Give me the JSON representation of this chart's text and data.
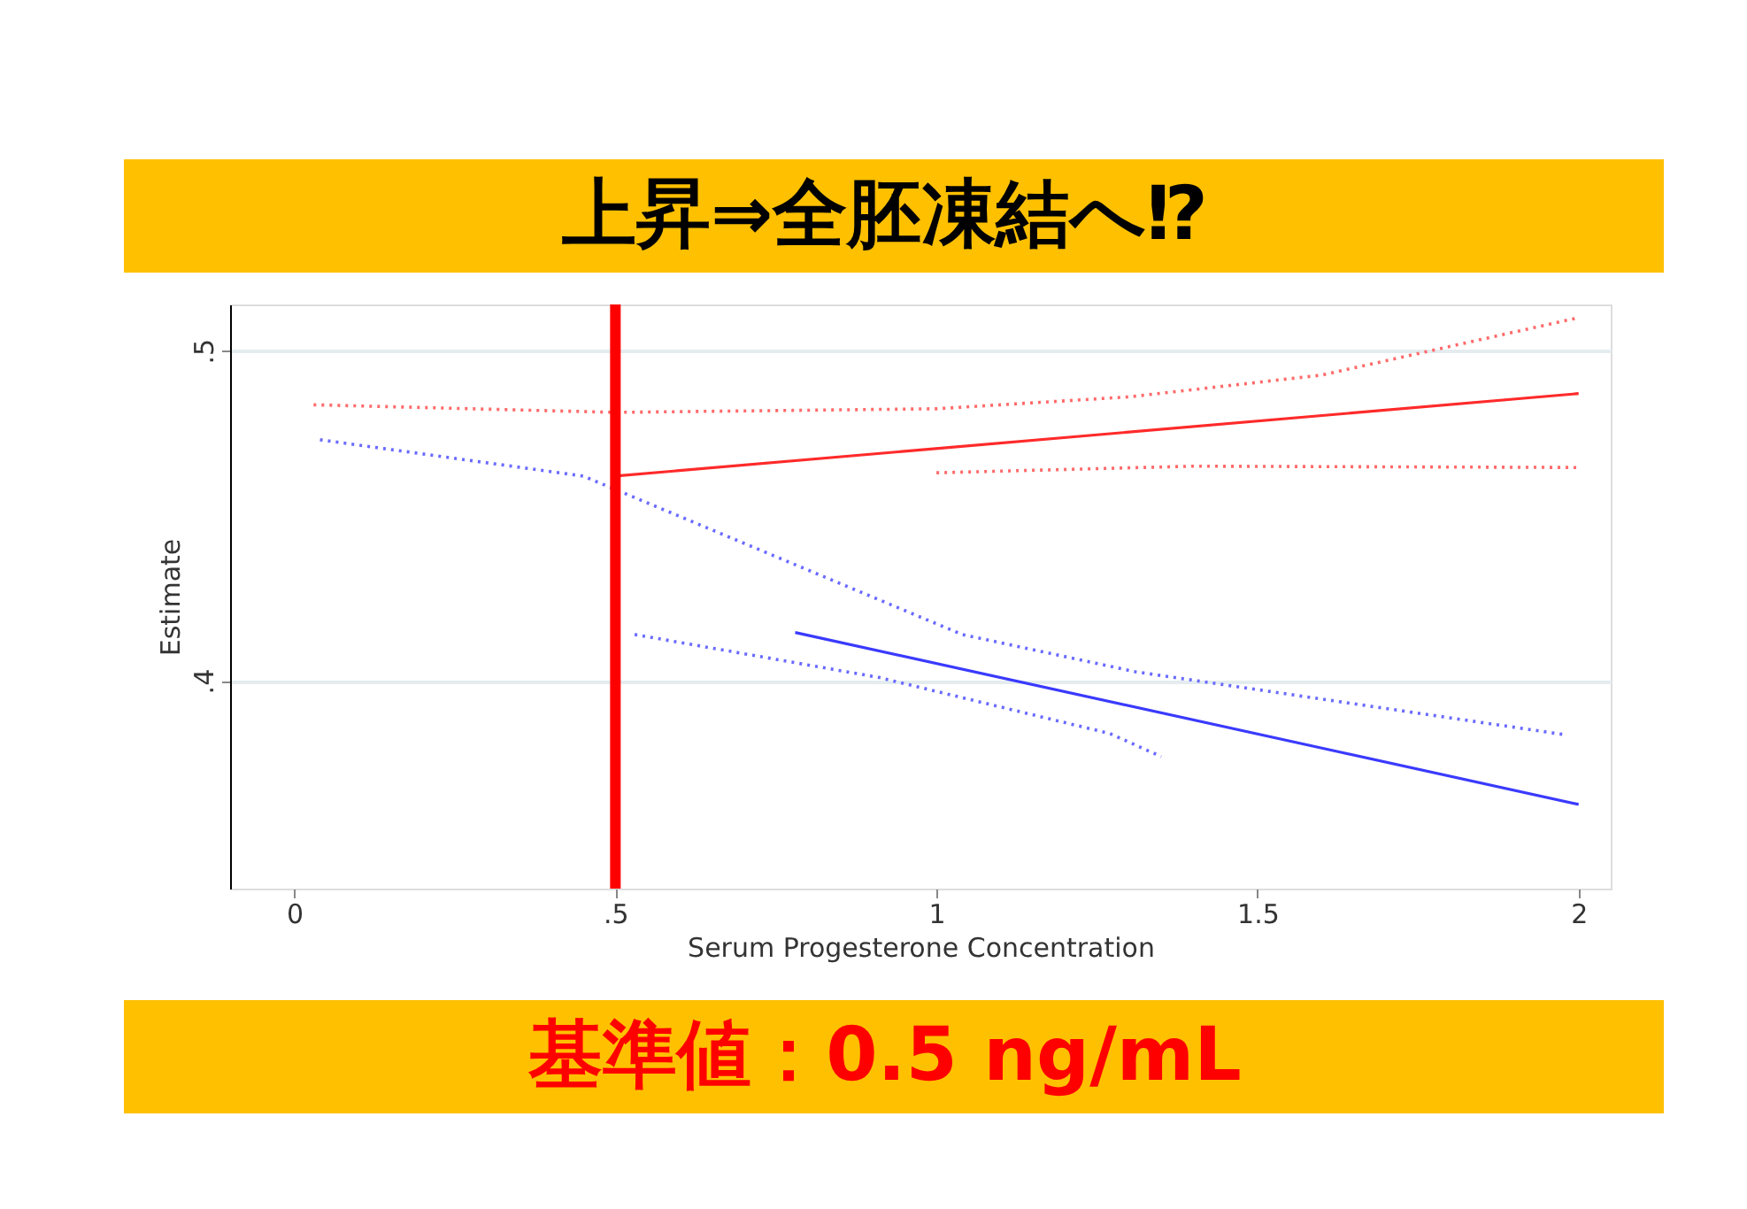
{
  "chart_data": {
    "type": "line",
    "xlabel": "Serum Progesterone Concentration",
    "ylabel": "Estimate",
    "xlim": [
      -0.1,
      2.05
    ],
    "xticks": [
      0,
      {
        "value": 0.5,
        "label": ".5"
      },
      1,
      1.5,
      2
    ],
    "ylim": [
      0.337,
      0.514
    ],
    "yticks": [
      {
        "value": 0.4,
        "label": ".4"
      },
      {
        "value": 0.5,
        "label": ".5"
      }
    ],
    "grid": "y",
    "marker": "none",
    "series": [
      {
        "color": "#ff2a2a",
        "line_style": "solid",
        "x": [
          0.5,
          2.0
        ],
        "values": [
          0.462,
          0.487
        ]
      },
      {
        "color": "#ff6a6a",
        "line_style": "dotted",
        "x": [
          0.03,
          0.5,
          1.0,
          1.3,
          1.6,
          2.0
        ],
        "values": [
          0.4836,
          0.4813,
          0.4824,
          0.486,
          0.4926,
          0.51
        ]
      },
      {
        "color": "#ff6a6a",
        "line_style": "dotted",
        "x": [
          1.0,
          1.4,
          2.0
        ],
        "values": [
          0.463,
          0.465,
          0.4646
        ]
      },
      {
        "color": "#3a3aff",
        "line_style": "solid",
        "x": [
          0.78,
          1.63,
          2.0
        ],
        "values": [
          0.4146,
          0.3783,
          0.3625
        ]
      },
      {
        "color": "#6a6aff",
        "line_style": "dotted",
        "x": [
          0.04,
          0.45,
          1.04,
          1.31,
          1.98
        ],
        "values": [
          0.473,
          0.462,
          0.414,
          0.4027,
          0.3836
        ]
      },
      {
        "color": "#6a6aff",
        "line_style": "dotted",
        "x": [
          0.53,
          0.91,
          1.27,
          1.35
        ],
        "values": [
          0.414,
          0.401,
          0.384,
          0.377
        ]
      }
    ],
    "ref_lines": [
      {
        "axis": "x",
        "value": 0.5,
        "color": "#ff0000"
      }
    ],
    "annotations": [
      "上昇⇒全胚凍結へ⁉",
      "基準値：0.5 ng/mL"
    ]
  }
}
